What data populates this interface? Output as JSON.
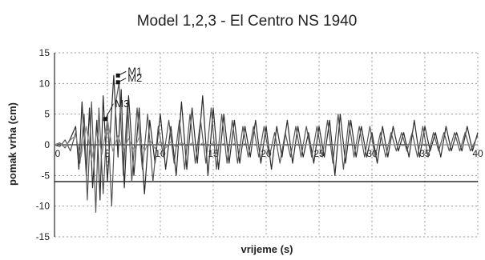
{
  "chart_data": {
    "type": "line",
    "title": "Model 1,2,3 - El Centro NS 1940",
    "xlabel": "vrijeme (s)",
    "ylabel": "pomak vrha (cm)",
    "xlim": [
      0,
      40
    ],
    "ylim": [
      -15,
      15
    ],
    "x_ticks": [
      "0",
      "5",
      "10",
      "15",
      "20",
      "25",
      "30",
      "35",
      "40"
    ],
    "y_ticks": [
      "15",
      "10",
      "5",
      "0",
      "-5",
      "-10",
      "-15"
    ],
    "grid": "dotted",
    "colors": {
      "line_dark": "#2b2b2b",
      "line_mid": "#555555",
      "line_light": "#8a8a8a",
      "grid": "#9a9a9a",
      "ref_line": "#000000"
    },
    "reference_line_y": -6,
    "annotations": [
      {
        "label": "M1",
        "x": 6.0,
        "y": 11.3
      },
      {
        "label": "M2",
        "x": 6.0,
        "y": 10.2
      },
      {
        "label": "M3",
        "x": 4.8,
        "y": 4.2
      }
    ],
    "series": [
      {
        "color": "#2b2b2b",
        "x": [
          0,
          0.5,
          1,
          1.5,
          2,
          2.3,
          2.6,
          3,
          3.3,
          3.6,
          4,
          4.3,
          4.6,
          5,
          5.3,
          5.6,
          6,
          6.3,
          6.6,
          7,
          7.5,
          8,
          8.5,
          9,
          9.5,
          10,
          10.5,
          11,
          11.5,
          12,
          12.5,
          13,
          13.5,
          14,
          14.5,
          15,
          15.5,
          16,
          16.5,
          17,
          17.5,
          18,
          18.5,
          19,
          19.5,
          20,
          20.5,
          21,
          21.5,
          22,
          22.5,
          23,
          23.5,
          24,
          24.5,
          25,
          25.5,
          26,
          26.5,
          27,
          27.5,
          28,
          28.5,
          29,
          29.5,
          30,
          30.5,
          31,
          31.5,
          32,
          32.5,
          33,
          33.5,
          34,
          34.5,
          35,
          35.5,
          36,
          36.5,
          37,
          37.5,
          38,
          38.5,
          39,
          39.5,
          40
        ],
        "y": [
          0,
          0.3,
          -0.5,
          1,
          3,
          -4,
          7,
          -5,
          6,
          -7,
          4,
          -9,
          8,
          -6,
          3,
          11.3,
          -2,
          9,
          -7,
          8,
          -5,
          6,
          -8,
          4,
          -3,
          5,
          -4,
          3,
          -5,
          7,
          -4,
          6,
          -3,
          8,
          -5,
          6,
          -4,
          5,
          -3,
          4,
          -3,
          3,
          -2,
          4,
          -3,
          3,
          -4,
          3,
          -2,
          4,
          -3,
          3,
          -2,
          2,
          -3,
          3,
          -2,
          4,
          -5,
          5,
          -3,
          4,
          -2,
          3,
          -2,
          2,
          -3,
          3,
          -2,
          3,
          -1,
          2,
          -2,
          4,
          -2,
          3,
          -1,
          2,
          -2,
          3,
          -1,
          2,
          -1,
          3,
          -1,
          2
        ]
      },
      {
        "color": "#555555",
        "x": [
          0,
          0.5,
          1,
          1.5,
          2,
          2.4,
          2.8,
          3.1,
          3.5,
          3.9,
          4.2,
          4.6,
          5,
          5.4,
          5.8,
          6.1,
          6.5,
          6.9,
          7.3,
          7.8,
          8.3,
          8.8,
          9.3,
          9.8,
          10.3,
          10.8,
          11.3,
          11.8,
          12.3,
          12.8,
          13.3,
          13.8,
          14.3,
          14.8,
          15.3,
          15.8,
          16.3,
          16.8,
          17.3,
          17.8,
          18.3,
          18.8,
          19.3,
          19.8,
          20.3,
          20.8,
          21.3,
          21.8,
          22.3,
          22.8,
          23.3,
          23.8,
          24.3,
          24.8,
          25.3,
          25.8,
          26.3,
          26.8,
          27.3,
          27.8,
          28.3,
          28.8,
          29.3,
          29.8,
          30.3,
          30.8,
          31.3,
          31.8,
          32.3,
          32.8,
          33.3,
          33.8,
          34.3,
          34.8,
          35.3,
          35.8,
          36.3,
          36.8,
          37.3,
          37.8,
          38.3,
          38.8,
          39.3,
          40
        ],
        "y": [
          0,
          -0.3,
          0.8,
          -1,
          2,
          -3,
          5,
          -9,
          7,
          -11,
          6,
          -8,
          5,
          -10,
          7,
          10.2,
          -5,
          7,
          -6,
          6,
          -4,
          5,
          -6,
          3,
          -2,
          4,
          -3,
          4,
          -4,
          5,
          -3,
          4,
          -3,
          6,
          -4,
          5,
          -3,
          4,
          -3,
          3,
          -2,
          3,
          -2,
          3,
          -2,
          2,
          -3,
          2,
          -2,
          3,
          -2,
          3,
          -2,
          3,
          -2,
          4,
          -3,
          5,
          -4,
          4,
          -2,
          3,
          -2,
          3,
          -2,
          2,
          -2,
          2,
          -1,
          2,
          -1,
          2,
          -2,
          3,
          -2,
          2,
          -1,
          2,
          -1,
          2,
          -1,
          2,
          -1,
          1.5
        ]
      },
      {
        "color": "#8a8a8a",
        "x": [
          0,
          0.5,
          1,
          1.5,
          2,
          2.5,
          3,
          3.5,
          4,
          4.5,
          5,
          5.5,
          6,
          6.5,
          7,
          7.5,
          8,
          8.5,
          9,
          9.5,
          10,
          10.5,
          11,
          11.5,
          12,
          12.5,
          13,
          13.5,
          14,
          14.5,
          15,
          15.5,
          16,
          16.5,
          17,
          17.5,
          18,
          18.5,
          19,
          19.5,
          20,
          21,
          22,
          23,
          24,
          25,
          26,
          27,
          28,
          29,
          30,
          31,
          32,
          33,
          34,
          35,
          36,
          37,
          38,
          39,
          40
        ],
        "y": [
          0,
          0.2,
          -0.4,
          0.8,
          1.5,
          -2,
          3,
          -2.5,
          2,
          -1.5,
          4.2,
          -1,
          1.5,
          -1,
          1,
          -0.8,
          1.2,
          -1,
          0.8,
          -0.6,
          0.6,
          -0.5,
          0.5,
          -0.4,
          0.4,
          -0.3,
          0.3,
          -0.3,
          0.3,
          -0.2,
          0.3,
          -0.2,
          0.2,
          -0.2,
          0.2,
          -0.2,
          0.2,
          -0.1,
          0.1,
          -0.1,
          0,
          0.1,
          -0.1,
          0.1,
          0,
          0.1,
          -0.1,
          0,
          0.1,
          0,
          0,
          0.1,
          0,
          -0.1,
          0,
          0.1,
          0,
          0,
          0,
          0,
          0
        ]
      }
    ]
  }
}
